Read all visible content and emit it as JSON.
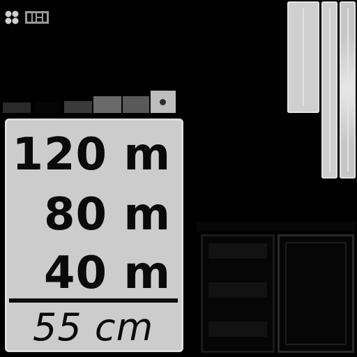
{
  "sign": {
    "line1": "120 m",
    "line2": "80 m",
    "line3": "40 m",
    "clearance": "55 cm"
  },
  "icons": {
    "logo_mark": "four-circle-emblem-icon",
    "logo_text": "logo-wordmark-icon"
  },
  "colors": {
    "background": "#000000",
    "sign_face": "#cccccc",
    "sign_text": "#0a0a0a",
    "bar_face": "#cfcfcf"
  }
}
